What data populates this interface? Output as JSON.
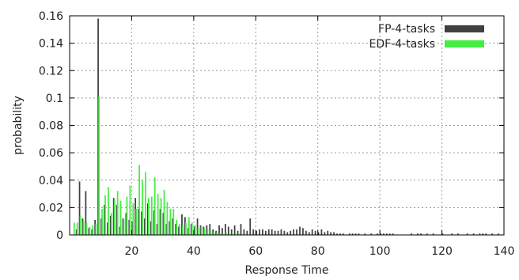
{
  "chart_data": {
    "type": "bar",
    "title": "",
    "xlabel": "Response Time",
    "ylabel": "probability",
    "xlim": [
      0,
      140
    ],
    "ylim": [
      0,
      0.16
    ],
    "x_ticks": [
      20,
      40,
      60,
      80,
      100,
      120,
      140
    ],
    "y_ticks": [
      0,
      0.02,
      0.04,
      0.06,
      0.08,
      0.1,
      0.12,
      0.14,
      0.16
    ],
    "y_tick_labels": [
      "0",
      "0.02",
      "0.04",
      "0.06",
      "0.08",
      "0.1",
      "0.12",
      "0.14",
      "0.16"
    ],
    "grid": true,
    "legend_position": "top-right",
    "series": [
      {
        "name": "FP-4-tasks",
        "color": "#404040",
        "x": [
          2,
          3,
          4,
          5,
          6,
          7,
          8,
          9,
          10,
          11,
          12,
          13,
          14,
          15,
          16,
          17,
          18,
          19,
          20,
          21,
          22,
          23,
          24,
          25,
          26,
          27,
          28,
          29,
          30,
          31,
          32,
          33,
          34,
          35,
          36,
          37,
          38,
          39,
          40,
          41,
          42,
          43,
          44,
          45,
          46,
          47,
          48,
          49,
          50,
          51,
          52,
          53,
          54,
          55,
          56,
          57,
          58,
          59,
          60,
          61,
          62,
          63,
          64,
          65,
          66,
          67,
          68,
          69,
          70,
          71,
          72,
          73,
          74,
          75,
          76,
          77,
          78,
          79,
          80,
          81,
          82,
          83,
          84,
          85,
          86,
          87,
          88,
          90,
          91,
          92,
          93,
          95,
          97,
          99,
          100,
          101,
          102,
          103,
          104,
          110,
          112,
          113,
          115,
          117,
          120,
          123,
          125,
          128,
          130,
          132,
          133,
          134,
          136,
          138
        ],
        "y": [
          0.004,
          0.039,
          0.012,
          0.032,
          0.005,
          0.004,
          0.011,
          0.158,
          0.012,
          0.022,
          0.009,
          0.014,
          0.027,
          0.022,
          0.006,
          0.012,
          0.016,
          0.011,
          0.01,
          0.027,
          0.019,
          0.017,
          0.012,
          0.023,
          0.01,
          0.018,
          0.008,
          0.019,
          0.016,
          0.008,
          0.01,
          0.012,
          0.008,
          0.006,
          0.015,
          0.013,
          0.005,
          0.008,
          0.006,
          0.012,
          0.007,
          0.006,
          0.007,
          0.008,
          0.004,
          0.003,
          0.007,
          0.005,
          0.008,
          0.006,
          0.004,
          0.007,
          0.003,
          0.008,
          0.004,
          0.003,
          0.012,
          0.004,
          0.003,
          0.004,
          0.004,
          0.003,
          0.004,
          0.004,
          0.003,
          0.003,
          0.004,
          0.003,
          0.002,
          0.003,
          0.004,
          0.004,
          0.006,
          0.005,
          0.003,
          0.002,
          0.004,
          0.003,
          0.002,
          0.004,
          0.002,
          0.003,
          0.002,
          0.002,
          0.001,
          0.001,
          0.001,
          0.001,
          0.001,
          0.001,
          0.001,
          0.001,
          0.001,
          0.001,
          0.001,
          0.001,
          0.001,
          0.001,
          0.001,
          0.001,
          0.001,
          0.001,
          0.001,
          0.001,
          0.001,
          0.001,
          0.001,
          0.001,
          0.001,
          0.001,
          0.001,
          0.001,
          0.001,
          0.001
        ]
      },
      {
        "name": "EDF-4-tasks",
        "color": "#44ee44",
        "x": [
          1,
          2,
          3,
          4,
          5,
          6,
          7,
          8,
          9,
          10,
          11,
          12,
          13,
          14,
          15,
          16,
          17,
          18,
          19,
          20,
          21,
          22,
          23,
          24,
          25,
          26,
          27,
          28,
          29,
          30,
          31,
          32,
          33,
          34,
          35,
          36,
          37,
          38,
          39,
          40,
          41,
          42,
          43,
          44,
          45,
          46,
          47,
          48,
          50,
          52,
          54
        ],
        "y": [
          0.009,
          0.009,
          0.014,
          0.01,
          0.009,
          0.006,
          0.007,
          0.008,
          0.101,
          0.019,
          0.029,
          0.035,
          0.016,
          0.026,
          0.032,
          0.025,
          0.012,
          0.028,
          0.036,
          0.023,
          0.019,
          0.051,
          0.04,
          0.046,
          0.027,
          0.028,
          0.042,
          0.03,
          0.027,
          0.033,
          0.024,
          0.019,
          0.019,
          0.011,
          0.008,
          0.007,
          0.009,
          0.013,
          0.009,
          0.007,
          0.005,
          0.006,
          0.004,
          0.004,
          0.003,
          0.002,
          0.002,
          0.001,
          0.002,
          0.001,
          0.001
        ]
      }
    ]
  }
}
